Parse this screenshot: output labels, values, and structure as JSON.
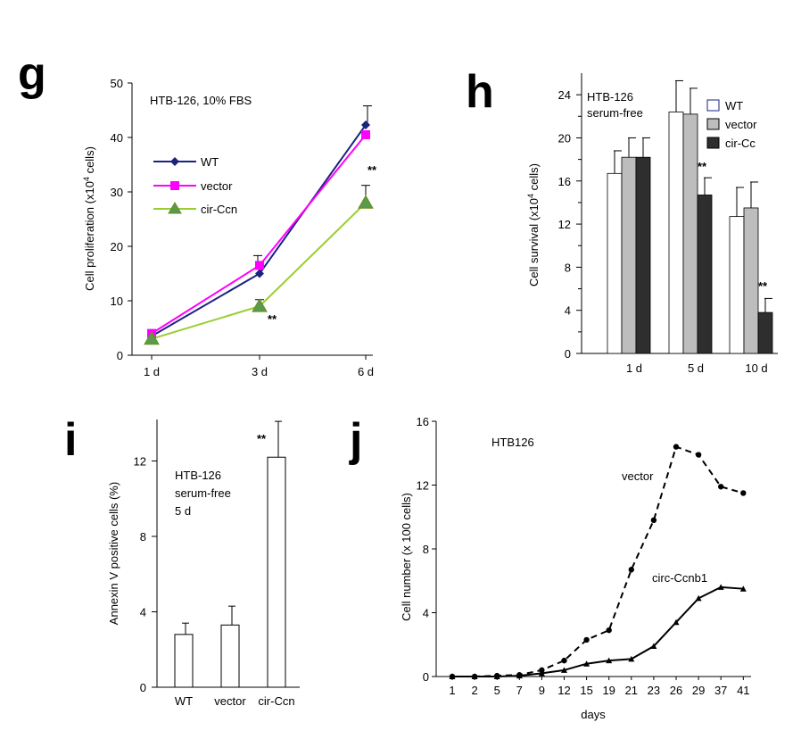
{
  "panels": {
    "g": {
      "letter": "g"
    },
    "h": {
      "letter": "h"
    },
    "i": {
      "letter": "i"
    },
    "j": {
      "letter": "j"
    }
  },
  "colors": {
    "wt": "#1a237e",
    "vector": "#ff00ff",
    "circ": "#9acd32",
    "circ_marker": "#5a9a4a",
    "bar_wt": "#ffffff",
    "bar_vector": "#bdbdbd",
    "bar_circ": "#2e2e2e"
  },
  "chart_data": [
    {
      "id": "g",
      "type": "line",
      "title": "HTB-126, 10% FBS",
      "ylabel": "Cell proliferation (x10⁴ cells)",
      "ylabel_base": "Cell proliferation (x10",
      "ylabel_sup": "4",
      "ylabel_tail": " cells)",
      "categories": [
        "1 d",
        "3 d",
        "6 d"
      ],
      "ylim": [
        0,
        50
      ],
      "yticks": [
        0,
        10,
        20,
        30,
        40,
        50
      ],
      "series": [
        {
          "name": "WT",
          "values": [
            3.5,
            15,
            42.3
          ],
          "errors": [
            0,
            0,
            3.5
          ]
        },
        {
          "name": "vector",
          "values": [
            4,
            16.5,
            40.5
          ],
          "errors": [
            0,
            1.8,
            0
          ]
        },
        {
          "name": "cir-Ccn",
          "values": [
            3,
            9,
            28
          ],
          "errors": [
            0,
            1.2,
            3.2
          ]
        }
      ],
      "significance": [
        {
          "label": "**",
          "category": "3 d",
          "series": "cir-Ccn"
        },
        {
          "label": "**",
          "category": "6 d",
          "series": "cir-Ccn"
        }
      ]
    },
    {
      "id": "h",
      "type": "bar",
      "title_lines": [
        "HTB-126",
        "serum-free"
      ],
      "ylabel": "Cell survival (x10⁴ cells)",
      "ylabel_base": "Cell survival (x10",
      "ylabel_sup": "4",
      "ylabel_tail": " cells)",
      "categories": [
        "1 d",
        "5 d",
        "10 d"
      ],
      "ylim": [
        0,
        26
      ],
      "yticks": [
        0,
        4,
        8,
        12,
        16,
        20,
        24
      ],
      "series": [
        {
          "name": "WT",
          "values": [
            16.7,
            22.4,
            12.7
          ],
          "errors": [
            2.1,
            2.9,
            2.7
          ]
        },
        {
          "name": "vector",
          "values": [
            18.2,
            22.2,
            13.5
          ],
          "errors": [
            1.8,
            2.4,
            2.4
          ]
        },
        {
          "name": "cir-Cc",
          "values": [
            18.2,
            14.7,
            3.8
          ],
          "errors": [
            1.8,
            1.6,
            1.3
          ]
        }
      ],
      "significance": [
        {
          "label": "**",
          "category": "5 d",
          "series": "cir-Cc"
        },
        {
          "label": "**",
          "category": "10 d",
          "series": "cir-Cc"
        }
      ]
    },
    {
      "id": "i",
      "type": "bar",
      "title_lines": [
        "HTB-126",
        "serum-free",
        "5 d"
      ],
      "ylabel": "Annexin V positive cells (%)",
      "categories": [
        "WT",
        "vector",
        "cir-Ccn"
      ],
      "ylim": [
        0,
        14.2
      ],
      "yticks": [
        0,
        4,
        8,
        12
      ],
      "values": [
        2.8,
        3.3,
        12.2
      ],
      "errors": [
        0.6,
        1.0,
        1.9
      ],
      "significance": [
        {
          "label": "**",
          "category": "cir-Ccn"
        }
      ]
    },
    {
      "id": "j",
      "type": "line",
      "title": "HTB126",
      "xlabel": "days",
      "ylabel": "Cell number (x 100 cells)",
      "categories": [
        "1",
        "2",
        "5",
        "7",
        "9",
        "12",
        "15",
        "19",
        "21",
        "23",
        "26",
        "29",
        "37",
        "41"
      ],
      "ylim": [
        0,
        16
      ],
      "yticks": [
        0,
        4,
        8,
        12,
        16
      ],
      "series": [
        {
          "name": "vector",
          "values": [
            0,
            0,
            0.05,
            0.1,
            0.4,
            1.0,
            2.3,
            2.9,
            6.7,
            9.8,
            14.4,
            13.9,
            11.9,
            11.5
          ]
        },
        {
          "name": "circ-Ccnb1",
          "values": [
            0,
            0,
            0,
            0.05,
            0.2,
            0.4,
            0.8,
            1.0,
            1.1,
            1.9,
            3.4,
            4.9,
            5.6,
            5.5
          ]
        }
      ]
    }
  ]
}
